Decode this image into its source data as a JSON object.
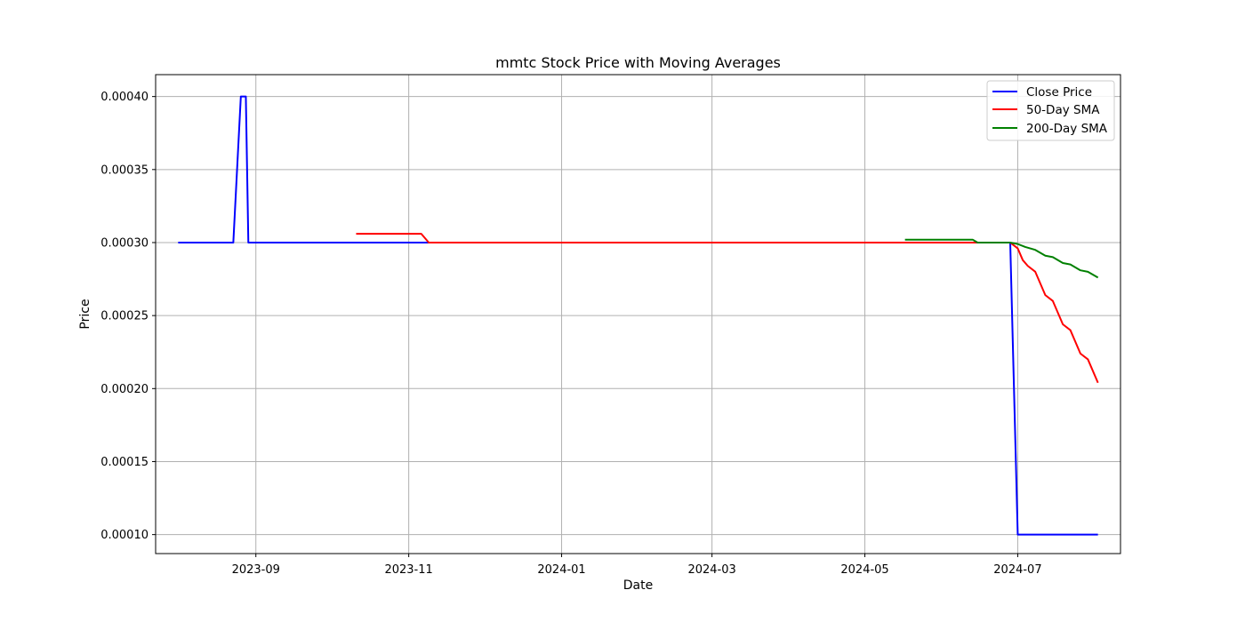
{
  "chart_data": {
    "type": "line",
    "title": "mmtc Stock Price with Moving Averages",
    "xlabel": "Date",
    "ylabel": "Price",
    "xlim": [
      "2023-07-23",
      "2024-08-11"
    ],
    "ylim": [
      8.7e-05,
      0.000415
    ],
    "x_ticks": [
      "2023-09",
      "2023-11",
      "2024-01",
      "2024-03",
      "2024-05",
      "2024-07"
    ],
    "y_ticks": [
      "0.00010",
      "0.00015",
      "0.00020",
      "0.00025",
      "0.00030",
      "0.00035",
      "0.00040"
    ],
    "grid": true,
    "legend_position": "top-right",
    "series": [
      {
        "name": "Close Price",
        "color": "#0000ff",
        "points": [
          [
            "2023-08-01",
            0.0003
          ],
          [
            "2023-08-23",
            0.0003
          ],
          [
            "2023-08-26",
            0.0004
          ],
          [
            "2023-08-28",
            0.0004
          ],
          [
            "2023-08-29",
            0.0003
          ],
          [
            "2023-11-10",
            0.0003
          ],
          [
            "2024-06-28",
            0.0003
          ],
          [
            "2024-07-01",
            0.0001
          ],
          [
            "2024-08-02",
            0.0001
          ]
        ]
      },
      {
        "name": "50-Day SMA",
        "color": "#ff0000",
        "points": [
          [
            "2023-10-11",
            0.000306
          ],
          [
            "2023-11-06",
            0.000306
          ],
          [
            "2023-11-09",
            0.0003
          ],
          [
            "2024-06-28",
            0.0003
          ],
          [
            "2024-07-01",
            0.000296
          ],
          [
            "2024-07-03",
            0.000288
          ],
          [
            "2024-07-05",
            0.000284
          ],
          [
            "2024-07-08",
            0.00028
          ],
          [
            "2024-07-12",
            0.000264
          ],
          [
            "2024-07-15",
            0.00026
          ],
          [
            "2024-07-19",
            0.000244
          ],
          [
            "2024-07-22",
            0.00024
          ],
          [
            "2024-07-26",
            0.000224
          ],
          [
            "2024-07-29",
            0.00022
          ],
          [
            "2024-08-02",
            0.000204
          ]
        ]
      },
      {
        "name": "200-Day SMA",
        "color": "#008000",
        "points": [
          [
            "2024-05-17",
            0.000302
          ],
          [
            "2024-06-13",
            0.000302
          ],
          [
            "2024-06-15",
            0.0003
          ],
          [
            "2024-06-28",
            0.0003
          ],
          [
            "2024-07-01",
            0.000299
          ],
          [
            "2024-07-04",
            0.000297
          ],
          [
            "2024-07-08",
            0.000295
          ],
          [
            "2024-07-12",
            0.000291
          ],
          [
            "2024-07-15",
            0.00029
          ],
          [
            "2024-07-19",
            0.000286
          ],
          [
            "2024-07-22",
            0.000285
          ],
          [
            "2024-07-26",
            0.000281
          ],
          [
            "2024-07-29",
            0.00028
          ],
          [
            "2024-08-02",
            0.000276
          ]
        ]
      }
    ]
  }
}
